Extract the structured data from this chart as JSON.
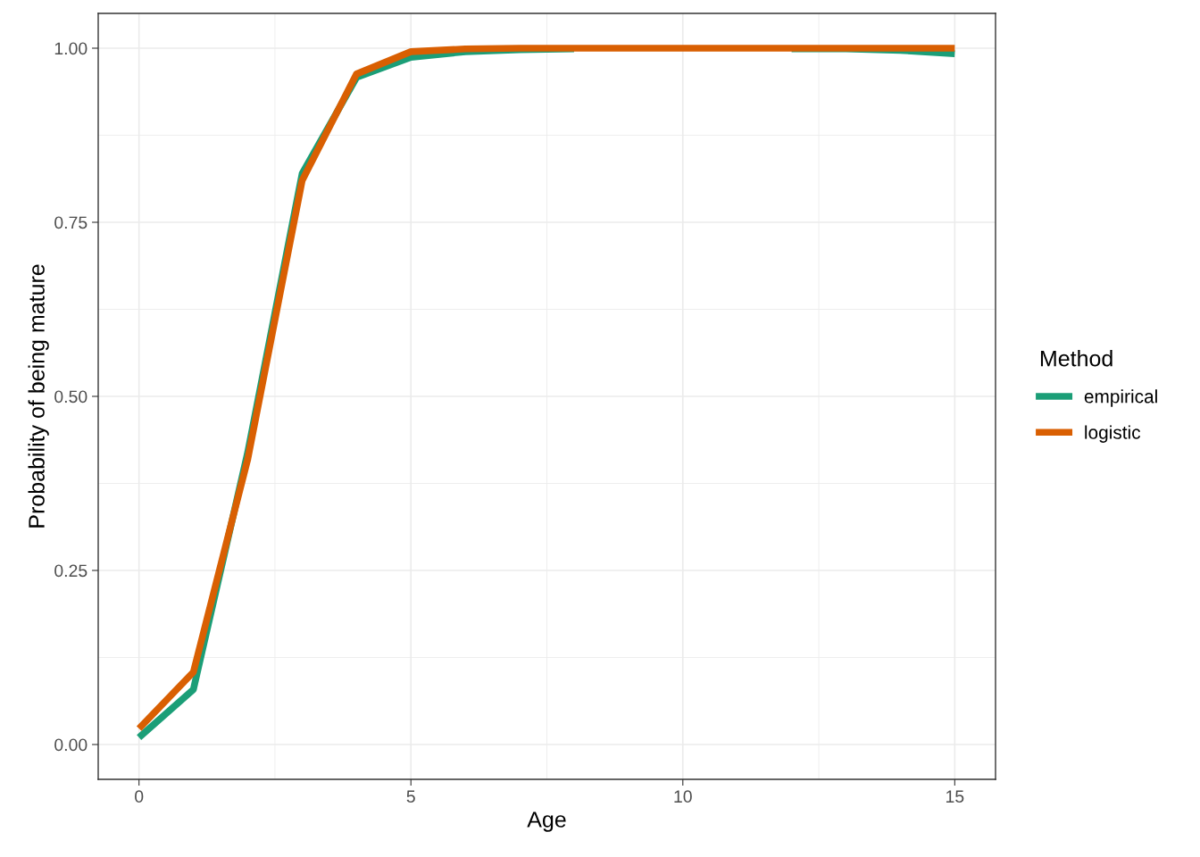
{
  "chart_data": {
    "type": "line",
    "xlabel": "Age",
    "ylabel": "Probability of being mature",
    "legend_title": "Method",
    "legend": "right",
    "grid": true,
    "x": [
      0,
      1,
      2,
      3,
      4,
      5,
      6,
      7,
      8,
      9,
      10,
      11,
      12,
      13,
      14,
      15
    ],
    "series": [
      {
        "name": "empirical",
        "color": "#1b9e77",
        "values": [
          0.01,
          0.079,
          0.42,
          0.82,
          0.958,
          0.987,
          0.995,
          0.998,
          0.999,
          null,
          null,
          null,
          0.999,
          0.999,
          0.997,
          0.992
        ]
      },
      {
        "name": "logistic",
        "color": "#d95f02",
        "values": [
          0.023,
          0.104,
          0.41,
          0.81,
          0.963,
          0.995,
          0.999,
          1.0,
          1.0,
          1.0,
          1.0,
          1.0,
          1.0,
          1.0,
          1.0,
          1.0
        ]
      }
    ],
    "xlim": [
      -0.75,
      15.75
    ],
    "xticks": [
      0,
      5,
      10,
      15
    ],
    "ylim": [
      -0.05,
      1.05
    ],
    "yticks": [
      {
        "value": 0,
        "label": "0.00"
      },
      {
        "value": 0.25,
        "label": "0.25"
      },
      {
        "value": 0.5,
        "label": "0.50"
      },
      {
        "value": 0.75,
        "label": "0.75"
      },
      {
        "value": 1,
        "label": "1.00"
      }
    ]
  }
}
